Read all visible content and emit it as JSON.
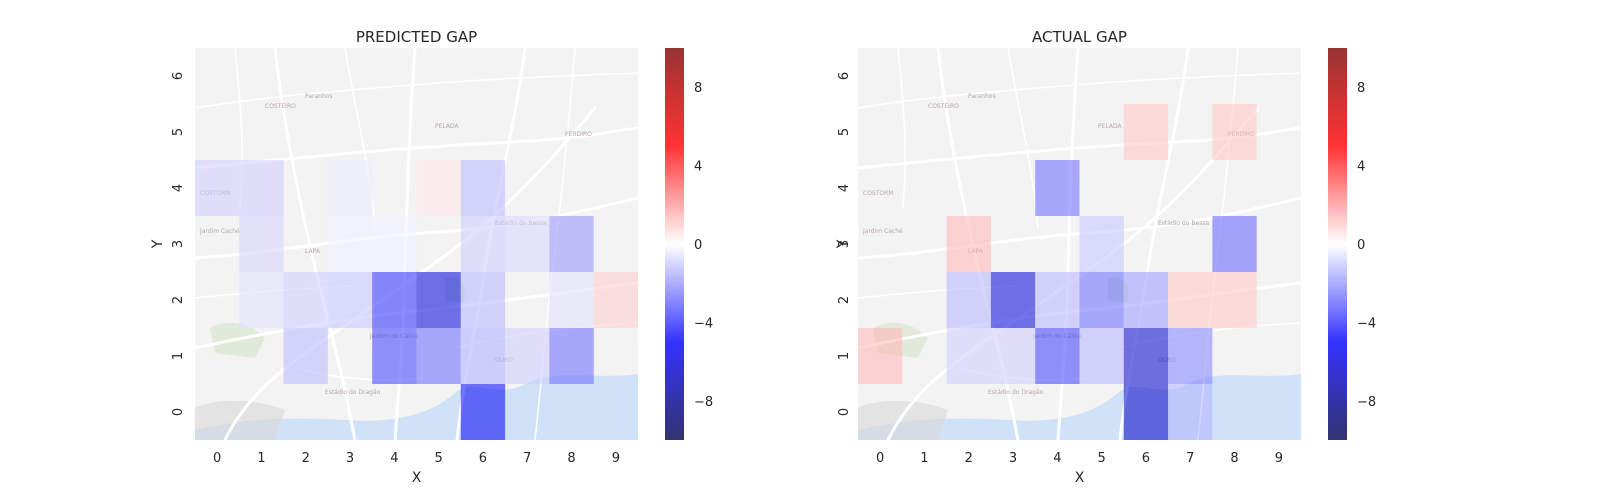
{
  "chart_data": [
    {
      "type": "heatmap",
      "title": "PREDICTED GAP",
      "xlabel": "X",
      "ylabel": "Y",
      "x_categories": [
        "0",
        "1",
        "2",
        "3",
        "4",
        "5",
        "6",
        "7",
        "8",
        "9"
      ],
      "y_categories": [
        "0",
        "1",
        "2",
        "3",
        "4",
        "5",
        "6"
      ],
      "color_range": [
        -10,
        10
      ],
      "colormap": "seismic",
      "colorbar_ticks": [
        "8",
        "4",
        "0",
        "−4",
        "−8"
      ],
      "cells": [
        {
          "x": 0,
          "y": 4,
          "value": -1.0
        },
        {
          "x": 1,
          "y": 4,
          "value": -1.0
        },
        {
          "x": 3,
          "y": 4,
          "value": -0.4
        },
        {
          "x": 5,
          "y": 4,
          "value": 0.5
        },
        {
          "x": 6,
          "y": 4,
          "value": -1.4
        },
        {
          "x": 1,
          "y": 3,
          "value": -0.9
        },
        {
          "x": 3,
          "y": 3,
          "value": -0.3
        },
        {
          "x": 4,
          "y": 3,
          "value": -0.3
        },
        {
          "x": 6,
          "y": 3,
          "value": -1.0
        },
        {
          "x": 7,
          "y": 3,
          "value": -0.8
        },
        {
          "x": 8,
          "y": 3,
          "value": -2.2
        },
        {
          "x": 1,
          "y": 2,
          "value": -0.6
        },
        {
          "x": 2,
          "y": 2,
          "value": -1.0
        },
        {
          "x": 3,
          "y": 2,
          "value": -1.2
        },
        {
          "x": 4,
          "y": 2,
          "value": -4.2
        },
        {
          "x": 5,
          "y": 2,
          "value": -6.0
        },
        {
          "x": 6,
          "y": 2,
          "value": -1.5
        },
        {
          "x": 8,
          "y": 2,
          "value": -0.6
        },
        {
          "x": 9,
          "y": 2,
          "value": 1.0
        },
        {
          "x": 2,
          "y": 1,
          "value": -1.4
        },
        {
          "x": 4,
          "y": 1,
          "value": -3.8
        },
        {
          "x": 5,
          "y": 1,
          "value": -3.0
        },
        {
          "x": 6,
          "y": 1,
          "value": -1.6
        },
        {
          "x": 7,
          "y": 1,
          "value": -1.0
        },
        {
          "x": 8,
          "y": 1,
          "value": -3.0
        },
        {
          "x": 6,
          "y": 0,
          "value": -5.2
        }
      ]
    },
    {
      "type": "heatmap",
      "title": "ACTUAL GAP",
      "xlabel": "X",
      "ylabel": "Y",
      "x_categories": [
        "0",
        "1",
        "2",
        "3",
        "4",
        "5",
        "6",
        "7",
        "8",
        "9"
      ],
      "y_categories": [
        "0",
        "1",
        "2",
        "3",
        "4",
        "5",
        "6"
      ],
      "color_range": [
        -10,
        10
      ],
      "colormap": "seismic",
      "colorbar_ticks": [
        "8",
        "4",
        "0",
        "−4",
        "−8"
      ],
      "cells": [
        {
          "x": 6,
          "y": 5,
          "value": 1.2
        },
        {
          "x": 8,
          "y": 5,
          "value": 1.2
        },
        {
          "x": 4,
          "y": 4,
          "value": -3.0
        },
        {
          "x": 2,
          "y": 3,
          "value": 1.5
        },
        {
          "x": 5,
          "y": 3,
          "value": -1.2
        },
        {
          "x": 8,
          "y": 3,
          "value": -3.2
        },
        {
          "x": 2,
          "y": 2,
          "value": -1.5
        },
        {
          "x": 3,
          "y": 2,
          "value": -6.0
        },
        {
          "x": 4,
          "y": 2,
          "value": -1.5
        },
        {
          "x": 5,
          "y": 2,
          "value": -3.0
        },
        {
          "x": 6,
          "y": 2,
          "value": -2.0
        },
        {
          "x": 7,
          "y": 2,
          "value": 1.2
        },
        {
          "x": 8,
          "y": 2,
          "value": 1.2
        },
        {
          "x": 0,
          "y": 1,
          "value": 1.5
        },
        {
          "x": 2,
          "y": 1,
          "value": -1.0
        },
        {
          "x": 3,
          "y": 1,
          "value": -1.0
        },
        {
          "x": 4,
          "y": 1,
          "value": -3.8
        },
        {
          "x": 5,
          "y": 1,
          "value": -1.5
        },
        {
          "x": 6,
          "y": 1,
          "value": -6.5
        },
        {
          "x": 7,
          "y": 1,
          "value": -2.5
        },
        {
          "x": 6,
          "y": 0,
          "value": -6.5
        },
        {
          "x": 7,
          "y": 0,
          "value": -1.5
        }
      ]
    }
  ]
}
